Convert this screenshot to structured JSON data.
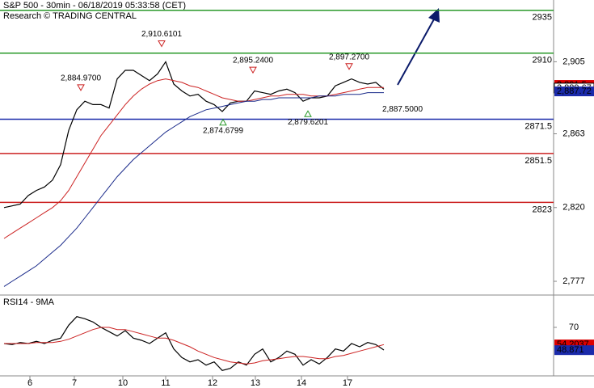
{
  "chart_data": [
    {
      "type": "line",
      "title": "S&P 500 - 30min - 06/18/2019 05:33:58 (CET)",
      "subtitle": "Research © TRADING CENTRAL",
      "xlim": [
        -0.5,
        68
      ],
      "ylim": [
        2769,
        2941
      ],
      "xticks": [
        {
          "value": 3.2,
          "label": "6"
        },
        {
          "value": 8.7,
          "label": "7"
        },
        {
          "value": 14.7,
          "label": "10"
        },
        {
          "value": 20,
          "label": "11"
        },
        {
          "value": 25.8,
          "label": "12"
        },
        {
          "value": 31.1,
          "label": "13"
        },
        {
          "value": 36.8,
          "label": "14"
        },
        {
          "value": 42.5,
          "label": "17"
        }
      ],
      "yticks": [
        {
          "value": 2777,
          "label": "2,777"
        },
        {
          "value": 2820,
          "label": "2,820"
        },
        {
          "value": 2863,
          "label": "2,863"
        },
        {
          "value": 2905,
          "label": "2,905"
        }
      ],
      "x": [
        0,
        1,
        2,
        3,
        4,
        5,
        6,
        7,
        8,
        9,
        10,
        11,
        12,
        13,
        14,
        15,
        16,
        17,
        18,
        19,
        20,
        21,
        22,
        23,
        24,
        25,
        26,
        27,
        28,
        29,
        30,
        31,
        32,
        33,
        34,
        35,
        36,
        37,
        38,
        39,
        40,
        41,
        42,
        43,
        44,
        45,
        46,
        47
      ],
      "series": [
        {
          "color": "#000000",
          "values": [
            2820,
            2821,
            2822,
            2827,
            2830,
            2832,
            2836,
            2845,
            2865,
            2877,
            2882,
            2880,
            2880,
            2878,
            2895,
            2900,
            2900,
            2897,
            2894,
            2898,
            2905,
            2892,
            2888,
            2885,
            2886,
            2882,
            2880,
            2876,
            2881,
            2882,
            2882,
            2888,
            2887,
            2886,
            2888,
            2889,
            2887,
            2882,
            2884,
            2884,
            2885,
            2891,
            2893,
            2895,
            2893,
            2892,
            2893,
            2889
          ]
        },
        {
          "color": "#cc2222",
          "values": [
            2802,
            2805,
            2808,
            2811,
            2814,
            2817,
            2820,
            2824,
            2830,
            2838,
            2846,
            2854,
            2862,
            2868,
            2874,
            2880,
            2885,
            2889,
            2892,
            2894,
            2895,
            2894,
            2893,
            2891,
            2890,
            2888,
            2886,
            2884,
            2883,
            2882,
            2882,
            2883,
            2884,
            2885,
            2885,
            2886,
            2886,
            2886,
            2885,
            2885,
            2885,
            2886,
            2887,
            2888,
            2889,
            2890,
            2890,
            2890
          ]
        },
        {
          "color": "#1a2a8a",
          "values": [
            2774,
            2777,
            2780,
            2783,
            2786,
            2790,
            2794,
            2798,
            2803,
            2808,
            2814,
            2820,
            2826,
            2832,
            2838,
            2843,
            2848,
            2852,
            2856,
            2860,
            2864,
            2867,
            2870,
            2873,
            2875,
            2877,
            2878,
            2879,
            2880,
            2881,
            2882,
            2882,
            2883,
            2883,
            2884,
            2884,
            2884,
            2884,
            2884,
            2885,
            2885,
            2885,
            2886,
            2886,
            2886,
            2887,
            2887,
            2887
          ]
        }
      ],
      "levels": {
        "values": [
          2935,
          2910,
          2871.5,
          2851.5,
          2823
        ],
        "colors": [
          "#2a9a2a",
          "#2a9a2a",
          "#1a2aaa",
          "#cc2222",
          "#cc2222"
        ]
      },
      "annotations": [
        {
          "x": 19.5,
          "value": 2910.6101,
          "label": "2,910.6101",
          "kind": "high"
        },
        {
          "x": 9.5,
          "value": 2884.97,
          "label": "2,884.9700",
          "kind": "high"
        },
        {
          "x": 30.8,
          "value": 2895.24,
          "label": "2,895.2400",
          "kind": "high"
        },
        {
          "x": 42.7,
          "value": 2897.27,
          "label": "2,897.2700",
          "kind": "high"
        },
        {
          "x": 27.1,
          "value": 2874.6799,
          "label": "2,874.6799",
          "kind": "low"
        },
        {
          "x": 37.6,
          "value": 2879.6201,
          "label": "2,879.6201",
          "kind": "low"
        },
        {
          "x": 49.3,
          "value": 2887.5,
          "label": "2,887.5000",
          "kind": "pivot"
        }
      ],
      "tags": [
        {
          "value": 2891.5,
          "label": "2,891.5",
          "color": "#dd0000"
        },
        {
          "value": 2889.67,
          "label": "2,889.67",
          "color": "#ffffff"
        },
        {
          "value": 2887.72,
          "label": "2,887.72",
          "color": "#1a2aaa"
        }
      ]
    },
    {
      "type": "line",
      "title": "RSI14 - 9MA",
      "xlim": [
        -0.5,
        68
      ],
      "ylim": [
        25,
        100
      ],
      "yticks": [
        70
      ],
      "x": [
        0,
        1,
        2,
        3,
        4,
        5,
        6,
        7,
        8,
        9,
        10,
        11,
        12,
        13,
        14,
        15,
        16,
        17,
        18,
        19,
        20,
        21,
        22,
        23,
        24,
        25,
        26,
        27,
        28,
        29,
        30,
        31,
        32,
        33,
        34,
        35,
        36,
        37,
        38,
        39,
        40,
        41,
        42,
        43,
        44,
        45,
        46,
        47
      ],
      "series": [
        {
          "color": "#000000",
          "values": [
            55,
            54,
            56,
            55,
            57,
            55,
            58,
            60,
            72,
            80,
            78,
            75,
            70,
            66,
            62,
            67,
            60,
            58,
            55,
            60,
            65,
            50,
            42,
            38,
            40,
            35,
            38,
            30,
            32,
            38,
            35,
            45,
            50,
            38,
            42,
            48,
            45,
            35,
            40,
            36,
            42,
            50,
            48,
            55,
            52,
            56,
            54,
            49
          ]
        },
        {
          "color": "#cc2222",
          "values": [
            55,
            55,
            55,
            55,
            56,
            56,
            56,
            57,
            59,
            62,
            65,
            68,
            70,
            70,
            68,
            68,
            66,
            64,
            62,
            60,
            60,
            58,
            55,
            52,
            48,
            45,
            42,
            40,
            38,
            37,
            36,
            37,
            39,
            40,
            41,
            42,
            43,
            43,
            42,
            41,
            41,
            43,
            44,
            46,
            48,
            50,
            52,
            54
          ]
        }
      ],
      "tags": [
        {
          "value": 54.2037,
          "label": "54.2037",
          "color": "#dd0000"
        },
        {
          "value": 48.871,
          "label": "48.871",
          "color": "#1a2aaa"
        }
      ]
    }
  ]
}
